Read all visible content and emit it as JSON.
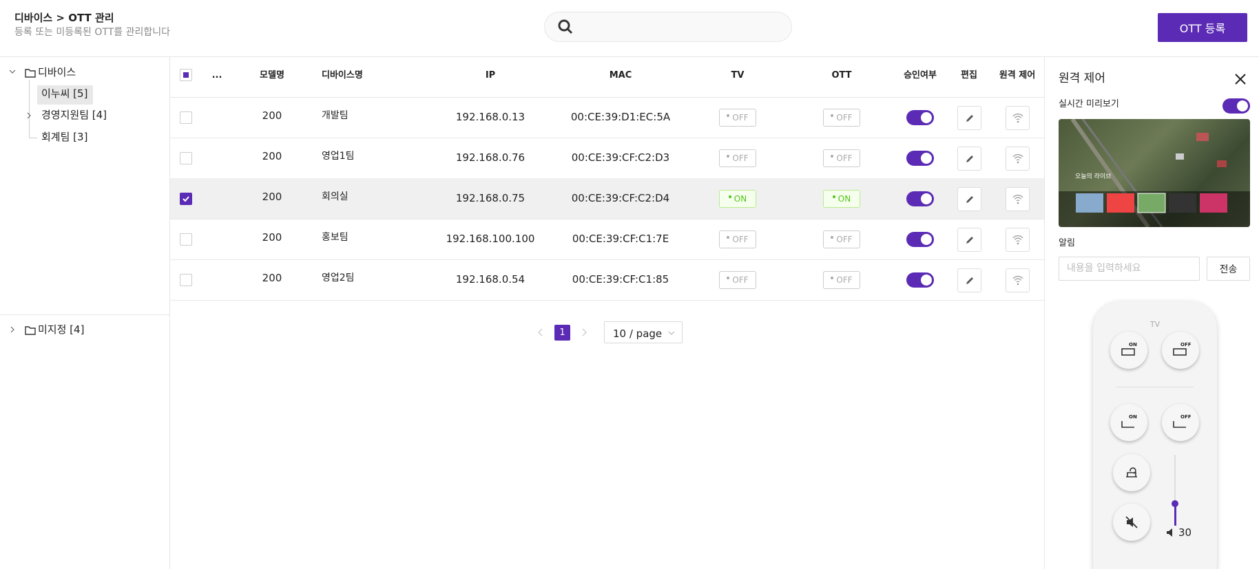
{
  "header": {
    "title": "디바이스 > OTT 관리",
    "subtitle": "등록 또는 미등록된 OTT를 관리합니다",
    "button": "OTT 등록"
  },
  "tree": [
    {
      "label": "디바이스",
      "children": [
        {
          "label": "이누씨 [5]",
          "selected": true
        },
        {
          "label": "경영지원팀 [4]"
        },
        {
          "label": "회계팀 [3]"
        }
      ]
    },
    {
      "label": "미지정 [4]"
    }
  ],
  "table": {
    "columns": [
      "...",
      "모델명",
      "디바이스명",
      "IP",
      "MAC",
      "TV",
      "OTT",
      "승인여부",
      "편집",
      "원격 제어"
    ],
    "rows": [
      {
        "model": "200",
        "name": "개발팀",
        "ip": "192.168.0.13",
        "mac": "00:CE:39:D1:EC:5A",
        "tv": "OFF",
        "ott": "OFF",
        "approved": true,
        "checked": false
      },
      {
        "model": "200",
        "name": "영업1팀",
        "ip": "192.168.0.76",
        "mac": "00:CE:39:CF:C2:D3",
        "tv": "OFF",
        "ott": "OFF",
        "approved": true,
        "checked": false
      },
      {
        "model": "200",
        "name": "회의실",
        "ip": "192.168.0.75",
        "mac": "00:CE:39:CF:C2:D4",
        "tv": "ON",
        "ott": "ON",
        "approved": true,
        "checked": true
      },
      {
        "model": "200",
        "name": "홍보팀",
        "ip": "192.168.100.100",
        "mac": "00:CE:39:CF:C1:7E",
        "tv": "OFF",
        "ott": "OFF",
        "approved": true,
        "checked": false
      },
      {
        "model": "200",
        "name": "영업2팀",
        "ip": "192.168.0.54",
        "mac": "00:CE:39:CF:C1:85",
        "tv": "OFF",
        "ott": "OFF",
        "approved": true,
        "checked": false
      }
    ]
  },
  "pagination": {
    "page": "1",
    "page_size": "10 / page"
  },
  "panel": {
    "title": "원격 제어",
    "preview_label": "실시간 미리보기",
    "preview_on": true,
    "preview_caption": "오늘의 라이브",
    "notice_label": "알림",
    "notice_placeholder": "내용을 입력하세요",
    "send": "전송",
    "remote": {
      "section": "TV",
      "buttons": [
        "ON",
        "OFF",
        "ON",
        "OFF"
      ],
      "volume": "30"
    }
  }
}
